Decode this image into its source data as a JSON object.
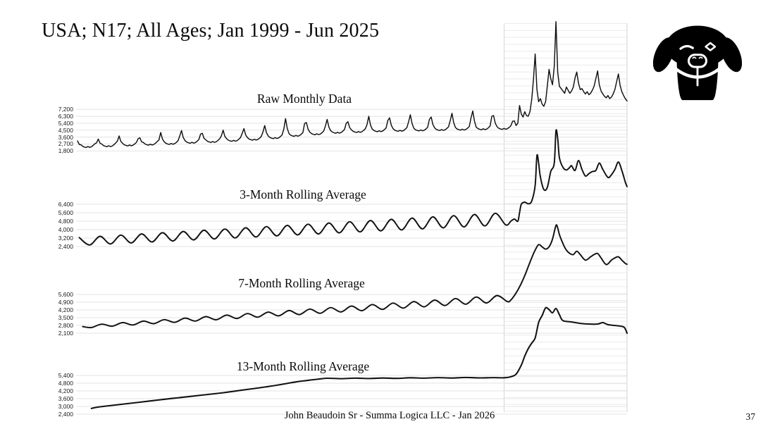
{
  "slide": {
    "title": "USA; N17; All Ages; Jan 1999 - Jun 2025",
    "footer": "John Beaudoin Sr - Summa Logica LLC - Jan 2026",
    "page_number": "37"
  },
  "logo": {
    "name": "black-dog-logo",
    "color": "#000000"
  },
  "style": {
    "grid_color": "#e3e3e3",
    "band_color": "#eaeaea",
    "band_edge_color": "#d5d5d5",
    "line_color": "#111111"
  },
  "chart_data": [
    {
      "type": "line",
      "title": "Raw Monthly Data",
      "ylabel": "",
      "xlabel": "",
      "x_unit": "month index, 0 = Jan 1999, 317 = Jun 2025",
      "ylim": [
        1800,
        7200
      ],
      "y_ticks": [
        "7,200",
        "6,300",
        "5,400",
        "4,500",
        "3,600",
        "2,700",
        "1,800"
      ],
      "grid": true,
      "legend": "none",
      "values": [
        3100,
        2650,
        2600,
        2400,
        2300,
        2250,
        2380,
        2270,
        2340,
        2510,
        2730,
        2860,
        3350,
        2800,
        2700,
        2500,
        2410,
        2350,
        2480,
        2370,
        2440,
        2610,
        2830,
        3070,
        3750,
        3040,
        2800,
        2600,
        2510,
        2450,
        2580,
        2470,
        2540,
        2710,
        2930,
        3390,
        3500,
        2980,
        2900,
        2700,
        2610,
        2550,
        2680,
        2570,
        2640,
        2810,
        3030,
        3230,
        4200,
        3350,
        3000,
        2800,
        2710,
        2650,
        2780,
        2670,
        2740,
        2910,
        3130,
        3770,
        4450,
        3540,
        3150,
        2950,
        2860,
        2800,
        2930,
        2820,
        2890,
        3060,
        3280,
        3990,
        4100,
        3440,
        3250,
        3050,
        2960,
        2900,
        3030,
        2920,
        2990,
        3160,
        3380,
        3760,
        4500,
        3700,
        3400,
        3200,
        3110,
        3050,
        3180,
        3070,
        3140,
        3310,
        3530,
        4090,
        4700,
        3880,
        3550,
        3350,
        3260,
        3200,
        3330,
        3220,
        3290,
        3460,
        3680,
        4280,
        5100,
        4170,
        3750,
        3550,
        3460,
        3400,
        3530,
        3420,
        3490,
        3660,
        3880,
        4620,
        6000,
        4740,
        4050,
        3850,
        3760,
        3700,
        3830,
        3720,
        3790,
        3960,
        4180,
        5360,
        5500,
        4620,
        4250,
        4050,
        3960,
        3900,
        4030,
        3920,
        3990,
        4160,
        4380,
        5050,
        5900,
        4910,
        4450,
        4250,
        4160,
        4100,
        4230,
        4120,
        4190,
        4360,
        4580,
        5400,
        5600,
        4830,
        4550,
        4350,
        4260,
        4200,
        4330,
        4220,
        4290,
        4460,
        4680,
        5210,
        6300,
        5200,
        4650,
        4450,
        4360,
        4300,
        4430,
        4320,
        4390,
        4560,
        4780,
        5740,
        6100,
        5140,
        4700,
        4500,
        4410,
        4350,
        4480,
        4370,
        4440,
        4610,
        4830,
        5610,
        6500,
        5350,
        4750,
        4550,
        4460,
        4400,
        4530,
        4420,
        4490,
        4660,
        4880,
        5910,
        6200,
        5240,
        4800,
        4600,
        4510,
        4450,
        4580,
        4470,
        4540,
        4710,
        4930,
        5710,
        6700,
        5490,
        4850,
        4650,
        4560,
        4500,
        4630,
        4520,
        4590,
        4760,
        4980,
        6080,
        7000,
        5650,
        4900,
        4700,
        4610,
        4550,
        4680,
        4570,
        4640,
        4810,
        5030,
        6310,
        6400,
        5410,
        4950,
        4750,
        4660,
        4600,
        4730,
        4620,
        4690,
        4860,
        5080,
        5650,
        5700,
        5100,
        5400,
        7700,
        6600,
        6200,
        6900,
        6400,
        6300,
        6900,
        8500,
        11000,
        14400,
        9800,
        8200,
        8600,
        7900,
        7600,
        8200,
        10200,
        12400,
        11200,
        10400,
        12800,
        18600,
        12000,
        10200,
        9900,
        9600,
        9300,
        10100,
        9700,
        9300,
        9600,
        10100,
        11300,
        12050,
        10600,
        9760,
        9900,
        9500,
        9200,
        9500,
        9100,
        9300,
        9700,
        10200,
        11200,
        12200,
        10400,
        9600,
        9200,
        8900,
        8700,
        9000,
        8600,
        8800,
        9200,
        9800,
        10800,
        11800,
        10300,
        9500,
        9000,
        8600,
        8300
      ]
    },
    {
      "type": "line",
      "title": "3-Month Rolling Average",
      "x_unit": "month index, 0 = Jan 1999, 317 = Jun 2025",
      "ylim": [
        2400,
        6400
      ],
      "y_ticks": [
        "6,400",
        "5,600",
        "4,800",
        "4,000",
        "3,200",
        "2,400"
      ],
      "grid": true,
      "legend": "none",
      "points": [
        [
          1,
          3250
        ],
        [
          7,
          2550
        ],
        [
          13,
          3365
        ],
        [
          19,
          2645
        ],
        [
          25,
          3480
        ],
        [
          31,
          2740
        ],
        [
          37,
          3595
        ],
        [
          43,
          2835
        ],
        [
          49,
          3710
        ],
        [
          55,
          2930
        ],
        [
          61,
          3825
        ],
        [
          67,
          3025
        ],
        [
          73,
          3940
        ],
        [
          79,
          3120
        ],
        [
          85,
          4055
        ],
        [
          91,
          3215
        ],
        [
          97,
          4170
        ],
        [
          103,
          3310
        ],
        [
          109,
          4285
        ],
        [
          115,
          3405
        ],
        [
          121,
          4400
        ],
        [
          127,
          3500
        ],
        [
          133,
          4515
        ],
        [
          139,
          3595
        ],
        [
          145,
          4630
        ],
        [
          151,
          3690
        ],
        [
          157,
          4745
        ],
        [
          163,
          3785
        ],
        [
          169,
          4860
        ],
        [
          175,
          3880
        ],
        [
          181,
          4975
        ],
        [
          187,
          3975
        ],
        [
          193,
          5090
        ],
        [
          199,
          4070
        ],
        [
          205,
          5205
        ],
        [
          211,
          4165
        ],
        [
          217,
          5320
        ],
        [
          223,
          4260
        ],
        [
          229,
          5435
        ],
        [
          235,
          4355
        ],
        [
          241,
          5550
        ],
        [
          247,
          4450
        ],
        [
          250,
          4800
        ],
        [
          252,
          5000
        ],
        [
          254,
          4800
        ],
        [
          255,
          5600
        ],
        [
          256,
          6400
        ],
        [
          258,
          6600
        ],
        [
          260,
          6450
        ],
        [
          262,
          6700
        ],
        [
          264,
          8200
        ],
        [
          265,
          11000
        ],
        [
          266,
          10300
        ],
        [
          267,
          9000
        ],
        [
          269,
          7800
        ],
        [
          271,
          8000
        ],
        [
          273,
          9500
        ],
        [
          275,
          10300
        ],
        [
          276,
          13340
        ],
        [
          277,
          12600
        ],
        [
          278,
          10800
        ],
        [
          280,
          9900
        ],
        [
          282,
          9650
        ],
        [
          284,
          9900
        ],
        [
          285,
          10050
        ],
        [
          287,
          9600
        ],
        [
          289,
          10540
        ],
        [
          291,
          9700
        ],
        [
          293,
          9070
        ],
        [
          295,
          9300
        ],
        [
          297,
          9500
        ],
        [
          299,
          9600
        ],
        [
          301,
          10300
        ],
        [
          303,
          9700
        ],
        [
          306,
          8940
        ],
        [
          308,
          9200
        ],
        [
          310,
          9700
        ],
        [
          312,
          10400
        ],
        [
          314,
          9600
        ],
        [
          316,
          8500
        ],
        [
          317,
          8070
        ]
      ]
    },
    {
      "type": "line",
      "title": "7-Month Rolling Average",
      "x_unit": "month index, 0 = Jan 1999, 317 = Jun 2025",
      "ylim": [
        2100,
        5600
      ],
      "y_ticks": [
        "5,600",
        "4,900",
        "4,200",
        "3,500",
        "2,800",
        "2,100"
      ],
      "grid": true,
      "legend": "none",
      "points": [
        [
          3,
          2700
        ],
        [
          8,
          2610
        ],
        [
          14,
          2916
        ],
        [
          20,
          2727
        ],
        [
          26,
          3052
        ],
        [
          32,
          2844
        ],
        [
          38,
          3188
        ],
        [
          44,
          2961
        ],
        [
          50,
          3324
        ],
        [
          56,
          3078
        ],
        [
          62,
          3460
        ],
        [
          68,
          3195
        ],
        [
          74,
          3596
        ],
        [
          80,
          3312
        ],
        [
          86,
          3732
        ],
        [
          92,
          3429
        ],
        [
          98,
          3868
        ],
        [
          104,
          3546
        ],
        [
          110,
          4004
        ],
        [
          116,
          3663
        ],
        [
          122,
          4140
        ],
        [
          128,
          3780
        ],
        [
          134,
          4276
        ],
        [
          140,
          3897
        ],
        [
          146,
          4412
        ],
        [
          152,
          4014
        ],
        [
          158,
          4548
        ],
        [
          164,
          4131
        ],
        [
          170,
          4684
        ],
        [
          176,
          4248
        ],
        [
          182,
          4820
        ],
        [
          188,
          4365
        ],
        [
          194,
          4956
        ],
        [
          200,
          4482
        ],
        [
          206,
          5092
        ],
        [
          212,
          4599
        ],
        [
          218,
          5228
        ],
        [
          224,
          4716
        ],
        [
          230,
          5364
        ],
        [
          236,
          4833
        ],
        [
          242,
          5500
        ],
        [
          248,
          4950
        ],
        [
          250,
          5100
        ],
        [
          252,
          5500
        ],
        [
          254,
          6000
        ],
        [
          256,
          6600
        ],
        [
          258,
          7300
        ],
        [
          260,
          8100
        ],
        [
          262,
          8900
        ],
        [
          264,
          9600
        ],
        [
          266,
          10100
        ],
        [
          268,
          9900
        ],
        [
          270,
          9700
        ],
        [
          272,
          9900
        ],
        [
          274,
          10600
        ],
        [
          276,
          11830
        ],
        [
          277,
          11600
        ],
        [
          278,
          11000
        ],
        [
          280,
          10200
        ],
        [
          282,
          9600
        ],
        [
          284,
          9300
        ],
        [
          286,
          9200
        ],
        [
          288,
          9500
        ],
        [
          290,
          9200
        ],
        [
          293,
          8700
        ],
        [
          296,
          9000
        ],
        [
          298,
          9200
        ],
        [
          300,
          9300
        ],
        [
          302,
          8900
        ],
        [
          305,
          8300
        ],
        [
          308,
          8700
        ],
        [
          310,
          8900
        ],
        [
          312,
          9000
        ],
        [
          314,
          8700
        ],
        [
          316,
          8400
        ],
        [
          317,
          8330
        ]
      ]
    },
    {
      "type": "line",
      "title": "13-Month Rolling Average",
      "x_unit": "month index, 0 = Jan 1999, 317 = Jun 2025",
      "ylim": [
        2400,
        5400
      ],
      "y_ticks": [
        "5,400",
        "4,800",
        "4,200",
        "3,600",
        "3,000",
        "2,400"
      ],
      "grid": true,
      "legend": "none",
      "points": [
        [
          8,
          2840
        ],
        [
          12,
          2950
        ],
        [
          24,
          3140
        ],
        [
          36,
          3330
        ],
        [
          48,
          3520
        ],
        [
          60,
          3700
        ],
        [
          72,
          3880
        ],
        [
          84,
          4060
        ],
        [
          96,
          4280
        ],
        [
          108,
          4500
        ],
        [
          120,
          4760
        ],
        [
          126,
          4900
        ],
        [
          132,
          5000
        ],
        [
          138,
          5100
        ],
        [
          144,
          5180
        ],
        [
          152,
          5150
        ],
        [
          160,
          5190
        ],
        [
          168,
          5160
        ],
        [
          176,
          5200
        ],
        [
          184,
          5170
        ],
        [
          192,
          5220
        ],
        [
          200,
          5190
        ],
        [
          208,
          5230
        ],
        [
          216,
          5200
        ],
        [
          224,
          5240
        ],
        [
          232,
          5210
        ],
        [
          240,
          5230
        ],
        [
          246,
          5220
        ],
        [
          250,
          5300
        ],
        [
          253,
          5500
        ],
        [
          256,
          6200
        ],
        [
          258,
          6900
        ],
        [
          260,
          7470
        ],
        [
          262,
          7900
        ],
        [
          264,
          8300
        ],
        [
          266,
          9500
        ],
        [
          268,
          10030
        ],
        [
          270,
          10630
        ],
        [
          272,
          10500
        ],
        [
          274,
          10250
        ],
        [
          276,
          10580
        ],
        [
          278,
          10100
        ],
        [
          280,
          9650
        ],
        [
          285,
          9540
        ],
        [
          290,
          9430
        ],
        [
          295,
          9380
        ],
        [
          300,
          9380
        ],
        [
          303,
          9490
        ],
        [
          306,
          9330
        ],
        [
          310,
          9270
        ],
        [
          313,
          9220
        ],
        [
          315,
          9160
        ],
        [
          316,
          9000
        ],
        [
          317,
          8670
        ]
      ]
    }
  ]
}
